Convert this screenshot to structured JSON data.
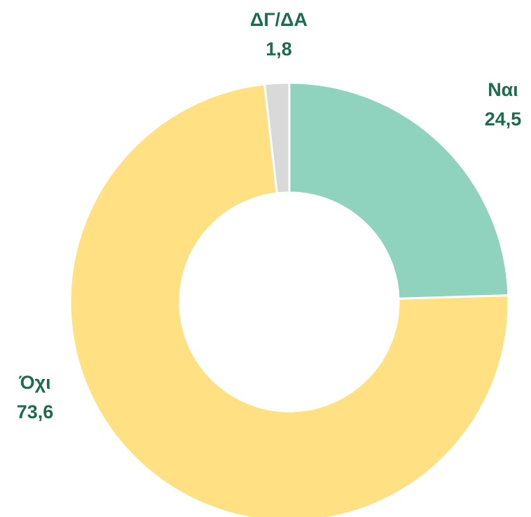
{
  "chart_data": {
    "type": "donut",
    "categories": [
      "Ναι",
      "Όχι",
      "ΔΓ/ΔΑ"
    ],
    "values": [
      24.5,
      73.6,
      1.8
    ],
    "value_labels": [
      "24,5",
      "73,6",
      "1,8"
    ],
    "colors": [
      "#8fd3be",
      "#ffe083",
      "#d9d9d9"
    ]
  }
}
